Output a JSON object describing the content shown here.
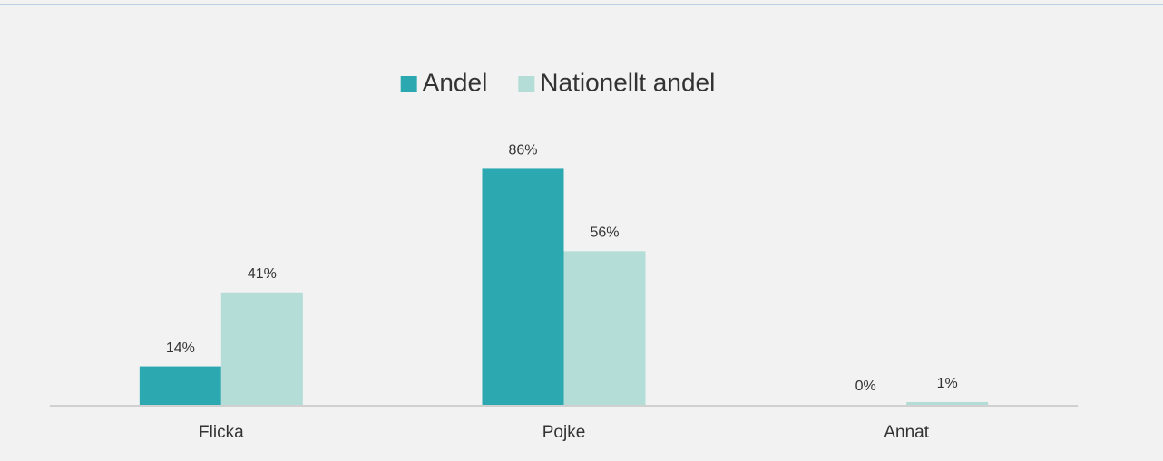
{
  "chart_data": {
    "type": "bar",
    "categories": [
      "Flicka",
      "Pojke",
      "Annat"
    ],
    "series": [
      {
        "name": "Andel",
        "color": "#2ba8b0",
        "values": [
          14,
          86,
          0
        ],
        "value_labels": [
          "14%",
          "86%",
          "0%"
        ]
      },
      {
        "name": "Nationellt andel",
        "color": "#b3ddd6",
        "values": [
          41,
          56,
          1
        ],
        "value_labels": [
          "41%",
          "56%",
          "1%"
        ]
      }
    ],
    "ylim": [
      0,
      100
    ],
    "legend": "top"
  }
}
